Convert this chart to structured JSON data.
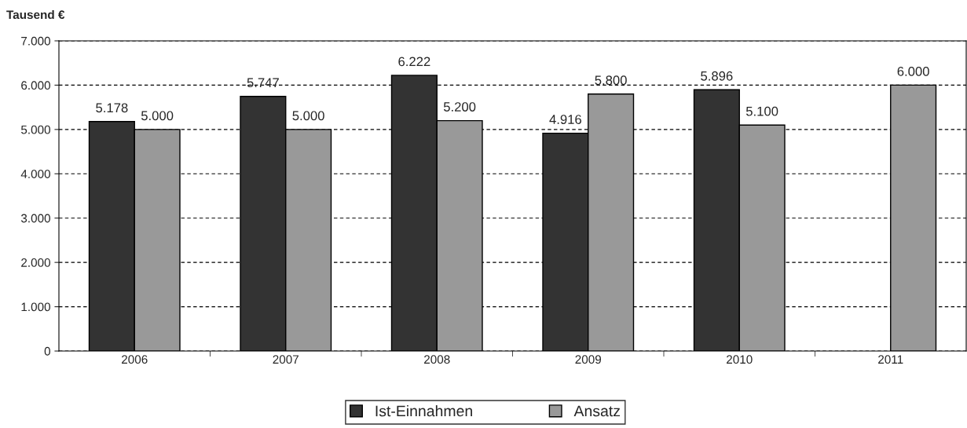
{
  "chart_data": {
    "type": "bar",
    "ylabel": "Tausend €",
    "categories": [
      "2006",
      "2007",
      "2008",
      "2009",
      "2010",
      "2011"
    ],
    "series": [
      {
        "name": "Ist-Einnahmen",
        "color": "#333333",
        "values": [
          5178,
          5747,
          6222,
          4916,
          5896,
          null
        ],
        "value_labels": [
          "5.178",
          "5.747",
          "6.222",
          "4.916",
          "5.896",
          null
        ]
      },
      {
        "name": "Ansatz",
        "color": "#999999",
        "values": [
          5000,
          5000,
          5200,
          5800,
          5100,
          6000
        ],
        "value_labels": [
          "5.000",
          "5.000",
          "5.200",
          "5.800",
          "5.100",
          "6.000"
        ]
      }
    ],
    "ylim": [
      0,
      7000
    ],
    "yticks": [
      0,
      {
        "value": 1000,
        "label": "1.000"
      },
      {
        "value": 2000,
        "label": "2.000"
      },
      {
        "value": 3000,
        "label": "3.000"
      },
      {
        "value": 4000,
        "label": "4.000"
      },
      {
        "value": 5000,
        "label": "5.000"
      },
      {
        "value": 6000,
        "label": "6.000"
      },
      {
        "value": 7000,
        "label": "7.000"
      }
    ],
    "grid": "y",
    "legend": "bottom"
  }
}
